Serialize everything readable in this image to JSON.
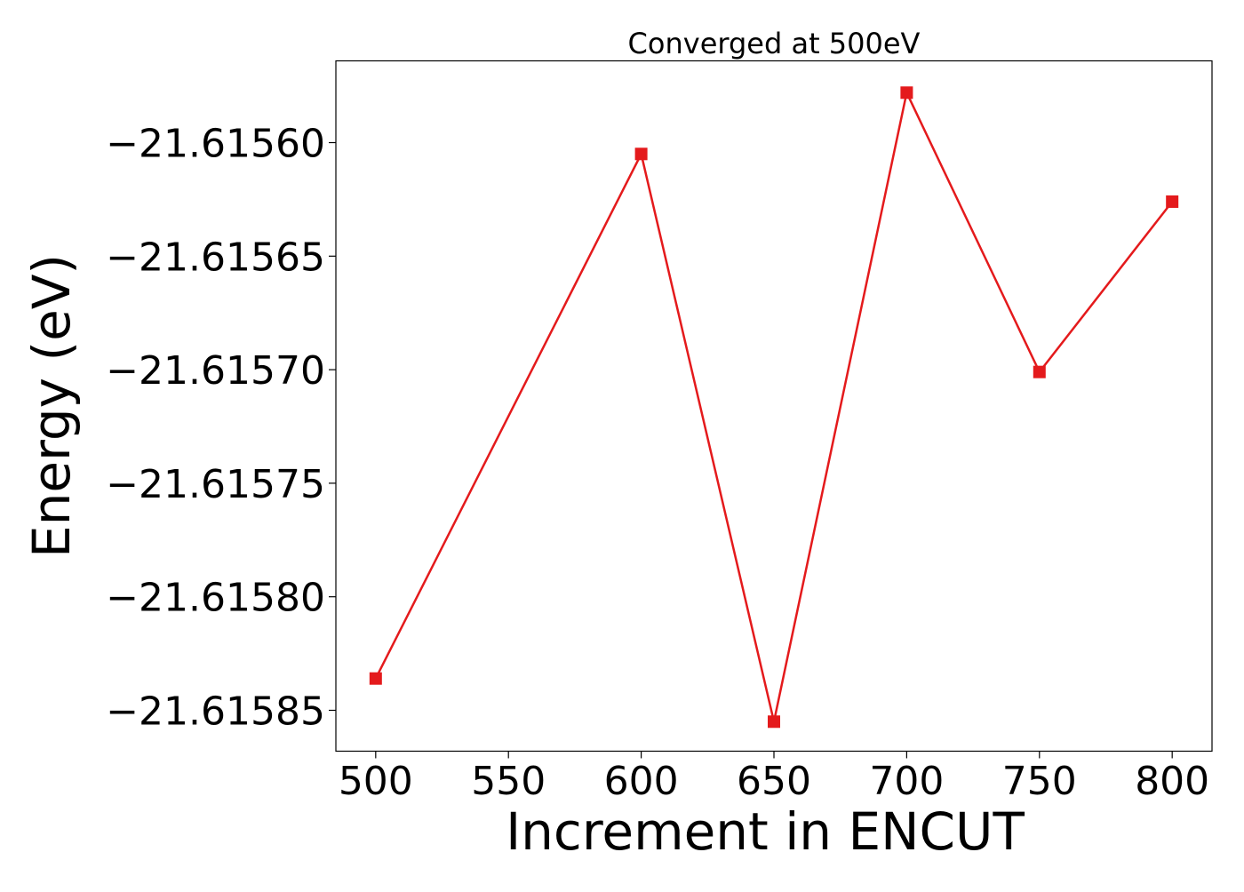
{
  "chart_data": {
    "type": "line",
    "title": "Converged at 500eV",
    "xlabel": "Increment in ENCUT",
    "ylabel": "Energy (eV)",
    "x": [
      500,
      600,
      650,
      700,
      750,
      800
    ],
    "series": [
      {
        "values": [
          -21.615836,
          -21.615605,
          -21.615855,
          -21.615578,
          -21.615701,
          -21.615626
        ],
        "color": "#e41a1c",
        "marker": "square"
      }
    ],
    "xlim": [
      485,
      815
    ],
    "ylim": [
      -21.615868,
      -21.615564
    ],
    "xticks": [
      500,
      550,
      600,
      650,
      700,
      750,
      800
    ],
    "xtick_labels": [
      "500",
      "550",
      "600",
      "650",
      "700",
      "750",
      "800"
    ],
    "yticks": [
      -21.6156,
      -21.61565,
      -21.6157,
      -21.61575,
      -21.6158,
      -21.61585
    ],
    "ytick_labels": [
      "−21.61560",
      "−21.61565",
      "−21.61570",
      "−21.61575",
      "−21.61580",
      "−21.61585"
    ],
    "grid": false,
    "legend": "none"
  }
}
